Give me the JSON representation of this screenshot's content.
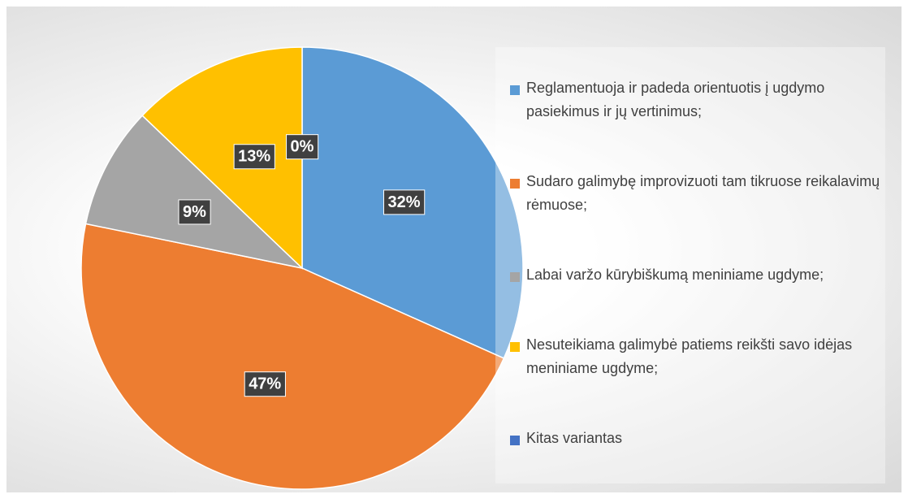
{
  "chart_data": {
    "type": "pie",
    "categories": [
      "Reglamentuoja ir padeda orientuotis į ugdymo pasiekimus ir jų vertinimus;",
      "Sudaro galimybę improvizuoti tam tikruose reikalavimų rėmuose;",
      "Labai varžo kūrybiškumą meniniame ugdyme;",
      "Nesuteikiama galimybė patiems reikšti savo idėjas meniniame ugdyme;",
      "Kitas variantas"
    ],
    "values": [
      32,
      47,
      9,
      13,
      0
    ],
    "value_labels": [
      "32%",
      "47%",
      "9%",
      "13%",
      "0%"
    ],
    "colors": [
      "#5b9bd5",
      "#ed7d31",
      "#a5a5a5",
      "#ffc000",
      "#4472c4"
    ],
    "legend": "right"
  }
}
